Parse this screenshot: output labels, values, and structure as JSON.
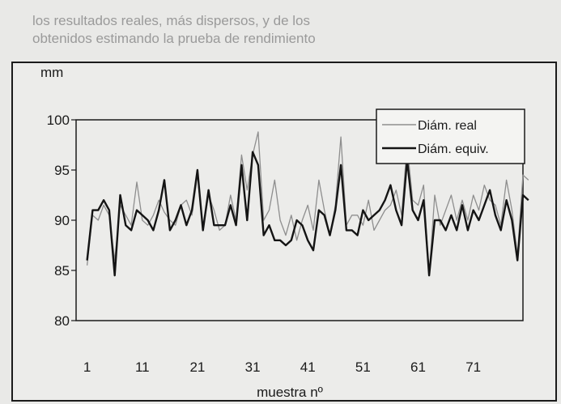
{
  "background_text": [
    "los resultados reales, más dispersos, y de los",
    "obtenidos estimando la prueba de rendimiento"
  ],
  "chart_data": {
    "type": "line",
    "ylabel": "mm",
    "xlabel": "muestra nº",
    "ylim": [
      80,
      100
    ],
    "yticks": [
      80,
      85,
      90,
      95,
      100
    ],
    "xtick_labels": [
      "1",
      "11",
      "21",
      "31",
      "41",
      "51",
      "61",
      "71"
    ],
    "xticks": [
      1,
      11,
      21,
      31,
      41,
      51,
      61,
      71
    ],
    "x_start": -1,
    "x_end": 80,
    "legend_position": "top-right",
    "grid": false,
    "series": [
      {
        "name": "Diám. real",
        "color": "#8e8e8e",
        "values": [
          85.5,
          90.5,
          90,
          91.5,
          90.5,
          86,
          91.5,
          90.5,
          89.5,
          93.8,
          90,
          89.5,
          90.5,
          92,
          90.8,
          90,
          89.5,
          91.5,
          92,
          90.5,
          94.5,
          89,
          92.5,
          91,
          89,
          89.5,
          92.5,
          90,
          96.5,
          93,
          96.5,
          98.8,
          90,
          91,
          94,
          90,
          88.5,
          90.5,
          88,
          90,
          91.5,
          89,
          94,
          91,
          88.5,
          91.5,
          98.3,
          89.5,
          90.5,
          90.5,
          89.5,
          92,
          89,
          90,
          91,
          91.5,
          93,
          90.5,
          97.5,
          92,
          91.5,
          93.5,
          84.5,
          92.5,
          89.5,
          91,
          92.5,
          90,
          92,
          90,
          92.5,
          91,
          93.5,
          92,
          91.5,
          89.5,
          94,
          91,
          86.5,
          94.5,
          94
        ]
      },
      {
        "name": "Diám. equiv.",
        "color": "#141414",
        "values": [
          86,
          91,
          91,
          92,
          91,
          84.5,
          92.5,
          89.5,
          89,
          91,
          90.5,
          90,
          89,
          91,
          94,
          89,
          90,
          91.5,
          89.5,
          91,
          95,
          89,
          93,
          89.5,
          89.5,
          89.5,
          91.5,
          89.5,
          95.5,
          90,
          96.8,
          95.5,
          88.5,
          89.5,
          88,
          88,
          87.5,
          88,
          90,
          89.5,
          88,
          87,
          91,
          90.5,
          88.5,
          91,
          95.5,
          89,
          89,
          88.5,
          91,
          90,
          90.5,
          91,
          92,
          93.5,
          91,
          89.5,
          96,
          91,
          90,
          92,
          84.5,
          90,
          90,
          89,
          90.5,
          89,
          91.5,
          89,
          91,
          90,
          91.5,
          93,
          90.5,
          89,
          92,
          90,
          86,
          92.5,
          92
        ]
      }
    ]
  }
}
